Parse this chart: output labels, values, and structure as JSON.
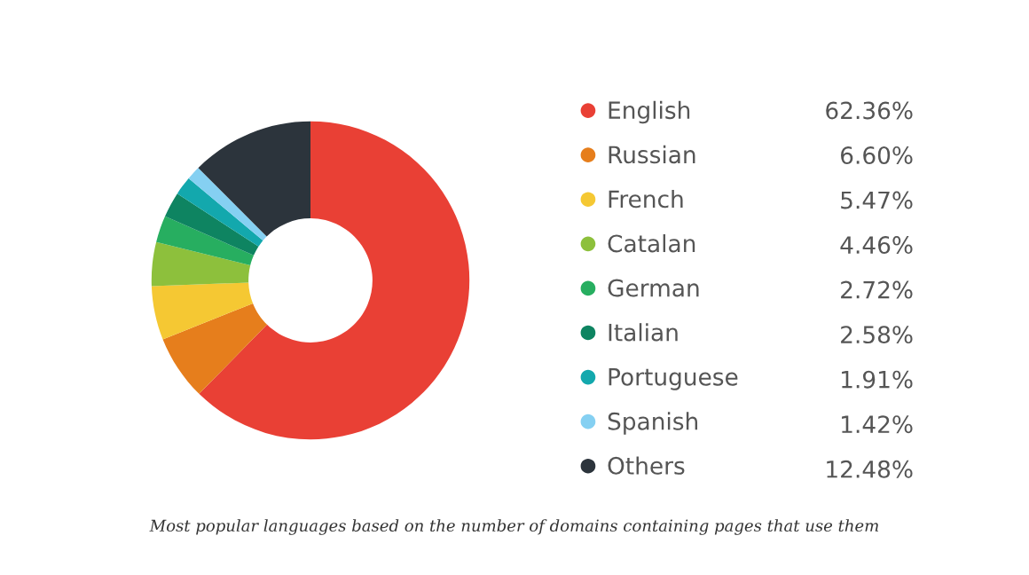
{
  "chart_data": {
    "type": "donut",
    "categories": [
      "English",
      "Russian",
      "French",
      "Catalan",
      "German",
      "Italian",
      "Portuguese",
      "Spanish",
      "Others"
    ],
    "values": [
      62.36,
      6.6,
      5.47,
      4.46,
      2.72,
      2.58,
      1.91,
      1.42,
      12.48
    ],
    "colors": [
      "#e94035",
      "#e67e1c",
      "#f5c833",
      "#8dc03c",
      "#27ae60",
      "#0e8461",
      "#13a8ad",
      "#85d0f2",
      "#2c343c"
    ],
    "value_labels": [
      "62.36%",
      "6.60%",
      "5.47%",
      "4.46%",
      "2.72%",
      "2.58%",
      "1.91%",
      "1.42%",
      "12.48%"
    ],
    "legend": "right",
    "annotations": [
      "Most popular languages based on the number of domains containing pages that use them"
    ]
  }
}
